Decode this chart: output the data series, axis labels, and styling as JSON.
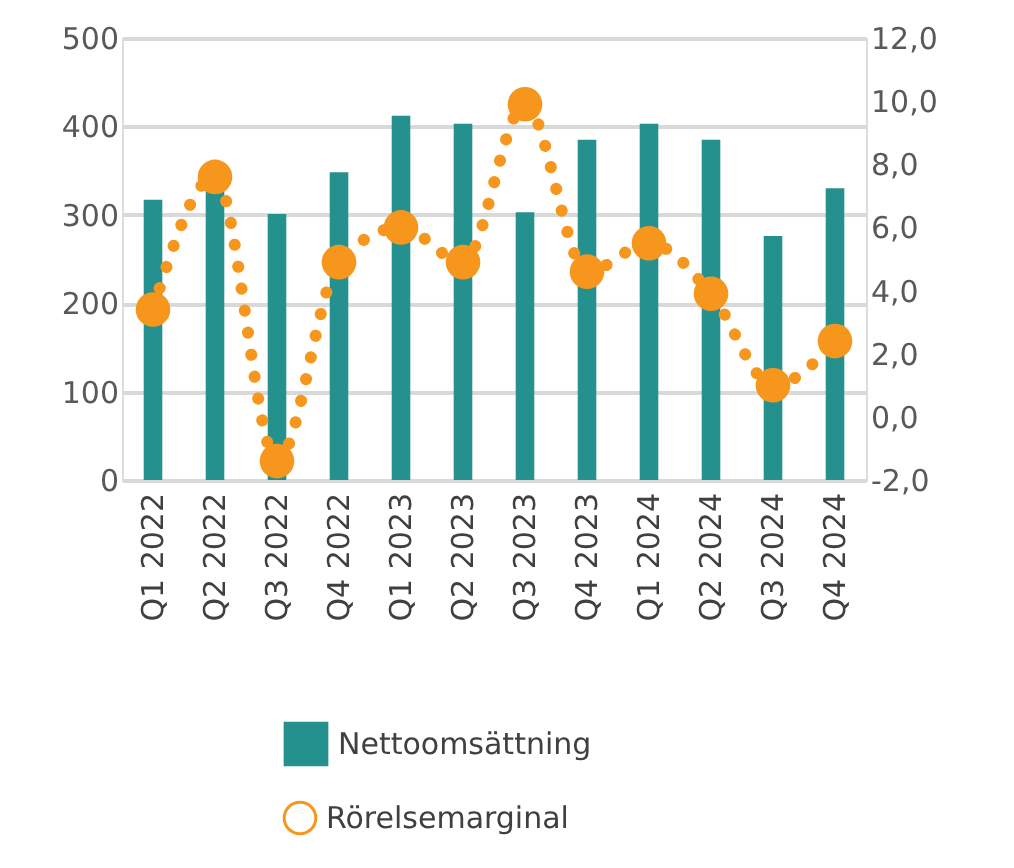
{
  "chart_data": {
    "type": "bar",
    "categories": [
      "Q1 2022",
      "Q2 2022",
      "Q3 2022",
      "Q4 2022",
      "Q1 2023",
      "Q2 2023",
      "Q3 2023",
      "Q4 2023",
      "Q1 2024",
      "Q2 2024",
      "Q3 2024",
      "Q4 2024"
    ],
    "series": [
      {
        "name": "Nettoomsättning",
        "color": "#25918f",
        "values": [
          317,
          330,
          301,
          348,
          412,
          403,
          303,
          385,
          403,
          385,
          276,
          330
        ]
      },
      {
        "name": "Rörelsemarginal",
        "type": "line",
        "axis": "y2",
        "color": "#f7961d",
        "values": [
          3.4,
          7.6,
          -1.4,
          4.9,
          6.0,
          4.9,
          9.9,
          4.6,
          5.5,
          3.9,
          1.0,
          2.4
        ]
      }
    ],
    "ylim": [
      0,
      500
    ],
    "yticks": [
      0,
      100,
      200,
      300,
      400,
      500
    ],
    "y2lim": [
      -2,
      12
    ],
    "y2ticks": [
      {
        "value": -2,
        "label": "-2,0"
      },
      {
        "value": 0,
        "label": "0,0"
      },
      {
        "value": 2,
        "label": "2,0"
      },
      {
        "value": 4,
        "label": "4,0"
      },
      {
        "value": 6,
        "label": "6,0"
      },
      {
        "value": 8,
        "label": "8,0"
      },
      {
        "value": 10,
        "label": "10,0"
      },
      {
        "value": 12,
        "label": "12,0"
      }
    ],
    "grid": "y",
    "legend": "bottom",
    "marker": "circle",
    "line_style": "dotted"
  }
}
